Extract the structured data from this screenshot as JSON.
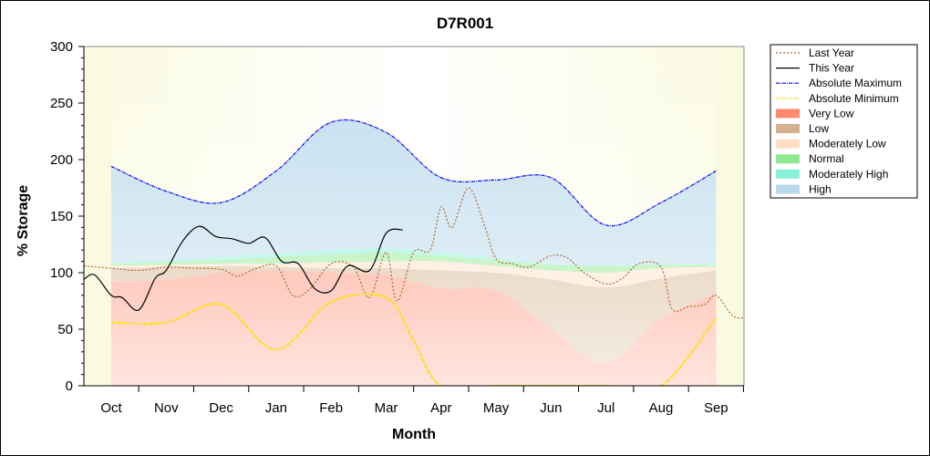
{
  "chart_data": {
    "type": "area",
    "title": "D7R001",
    "xlabel": "Month",
    "ylabel": "% Storage",
    "ylim": [
      0,
      300
    ],
    "yticks": [
      0,
      50,
      100,
      150,
      200,
      250,
      300
    ],
    "x_ticks": [
      "Oct",
      "Nov",
      "Dec",
      "Jan",
      "Feb",
      "Mar",
      "Apr",
      "May",
      "Jun",
      "Jul",
      "Aug",
      "Sep"
    ],
    "legend_position": "right",
    "bands": [
      {
        "name": "Very Low",
        "color": "#ff8a70",
        "x": [
          0,
          1,
          2,
          3,
          4,
          5,
          6,
          7,
          8,
          9,
          10,
          11
        ],
        "lower": [
          0,
          0,
          0,
          0,
          0,
          0,
          0,
          0,
          0,
          0,
          0,
          0
        ],
        "upper": [
          92,
          94,
          100,
          102,
          100,
          98,
          86,
          84,
          50,
          20,
          60,
          82
        ]
      },
      {
        "name": "Low",
        "color": "#d4b08c",
        "x": [
          0,
          1,
          2,
          3,
          4,
          5,
          6,
          7,
          8,
          9,
          10,
          11
        ],
        "lower": [
          92,
          94,
          100,
          102,
          100,
          98,
          86,
          84,
          50,
          20,
          60,
          82
        ],
        "upper": [
          104,
          105,
          106,
          105,
          104,
          104,
          102,
          100,
          94,
          87,
          95,
          102
        ]
      },
      {
        "name": "Moderately Low",
        "color": "#ffe0c4",
        "x": [
          0,
          1,
          2,
          3,
          4,
          5,
          6,
          7,
          8,
          9,
          10,
          11
        ],
        "lower": [
          104,
          105,
          106,
          105,
          104,
          104,
          102,
          100,
          94,
          87,
          95,
          102
        ],
        "upper": [
          106,
          107,
          108,
          108,
          109,
          110,
          110,
          106,
          102,
          100,
          104,
          105
        ]
      },
      {
        "name": "Normal",
        "color": "#90e890",
        "x": [
          0,
          1,
          2,
          3,
          4,
          5,
          6,
          7,
          8,
          9,
          10,
          11
        ],
        "lower": [
          106,
          107,
          108,
          108,
          109,
          110,
          110,
          106,
          102,
          100,
          104,
          105
        ],
        "upper": [
          108,
          109,
          111,
          114,
          116,
          118,
          115,
          111,
          107,
          106,
          107,
          107
        ]
      },
      {
        "name": "Moderately High",
        "color": "#88f0d8",
        "x": [
          0,
          1,
          2,
          3,
          4,
          5,
          6,
          7,
          8,
          9,
          10,
          11
        ],
        "lower": [
          108,
          109,
          111,
          114,
          116,
          118,
          115,
          111,
          107,
          106,
          107,
          107
        ],
        "upper": [
          109,
          111,
          114,
          117,
          120,
          122,
          118,
          113,
          108,
          107,
          108,
          108
        ]
      },
      {
        "name": "High",
        "color": "#b8d8ec",
        "x": [
          0,
          1,
          2,
          3,
          4,
          5,
          6,
          7,
          8,
          9,
          10,
          11
        ],
        "lower": [
          109,
          111,
          114,
          117,
          120,
          122,
          118,
          113,
          108,
          107,
          108,
          108
        ],
        "upper": [
          194,
          172,
          162,
          190,
          233,
          224,
          184,
          182,
          184,
          142,
          162,
          190
        ]
      }
    ],
    "series": [
      {
        "name": "Last Year",
        "style": "dotted",
        "color": "#b06830",
        "x": [
          -0.5,
          0,
          0.5,
          1,
          1.5,
          2,
          2.3,
          2.6,
          3,
          3.3,
          3.6,
          4,
          4.4,
          4.7,
          5,
          5.2,
          5.5,
          5.8,
          6,
          6.2,
          6.5,
          6.8,
          7,
          7.3,
          7.6,
          8,
          8.3,
          8.6,
          9,
          9.3,
          9.6,
          10,
          10.2,
          10.5,
          10.8,
          11,
          11.3,
          11.5
        ],
        "values": [
          106,
          104,
          102,
          105,
          104,
          103,
          97,
          103,
          106,
          80,
          85,
          108,
          105,
          78,
          118,
          75,
          118,
          120,
          158,
          140,
          175,
          140,
          112,
          108,
          105,
          115,
          113,
          100,
          90,
          95,
          108,
          105,
          68,
          70,
          72,
          80,
          62,
          60
        ]
      },
      {
        "name": "This Year",
        "style": "solid",
        "color": "#000000",
        "x": [
          -0.5,
          -0.3,
          0,
          0.2,
          0.5,
          0.8,
          1,
          1.3,
          1.6,
          1.9,
          2.2,
          2.5,
          2.8,
          3.1,
          3.4,
          3.7,
          4,
          4.3,
          4.7,
          5,
          5.3
        ],
        "values": [
          94,
          98,
          80,
          78,
          67,
          95,
          102,
          128,
          141,
          132,
          130,
          126,
          131,
          110,
          108,
          86,
          84,
          106,
          102,
          135,
          138
        ]
      },
      {
        "name": "Absolute Maximum",
        "style": "dashdot",
        "color": "#0000ff",
        "x": [
          0,
          1,
          2,
          3,
          4,
          5,
          6,
          7,
          8,
          9,
          10,
          11
        ],
        "values": [
          194,
          172,
          162,
          190,
          233,
          224,
          184,
          182,
          184,
          142,
          162,
          190
        ]
      },
      {
        "name": "Absolute Minimum",
        "style": "dashdot",
        "color": "#ffe000",
        "x": [
          0,
          1,
          2,
          3,
          4,
          5,
          5.5,
          6,
          7,
          8,
          9,
          10,
          11
        ],
        "values": [
          56,
          56,
          72,
          32,
          74,
          78,
          40,
          0,
          0,
          0,
          0,
          0,
          60
        ]
      }
    ],
    "legend": [
      {
        "name": "Last Year",
        "kind": "line",
        "color": "#b06830",
        "dash": "2,2"
      },
      {
        "name": "This Year",
        "kind": "line",
        "color": "#000000",
        "dash": ""
      },
      {
        "name": "Absolute Maximum",
        "kind": "line",
        "color": "#0000ff",
        "dash": "4,1,1,1"
      },
      {
        "name": "Absolute Minimum",
        "kind": "line",
        "color": "#ffe000",
        "dash": "4,1,1,1"
      },
      {
        "name": "Very Low",
        "kind": "fill",
        "color": "#ff8a70"
      },
      {
        "name": "Low",
        "kind": "fill",
        "color": "#d4b08c"
      },
      {
        "name": "Moderately Low",
        "kind": "fill",
        "color": "#ffe0c4"
      },
      {
        "name": "Normal",
        "kind": "fill",
        "color": "#90e890"
      },
      {
        "name": "Moderately High",
        "kind": "fill",
        "color": "#88f0d8"
      },
      {
        "name": "High",
        "kind": "fill",
        "color": "#b8d8ec"
      }
    ],
    "plot_background": "#fcfce6"
  }
}
